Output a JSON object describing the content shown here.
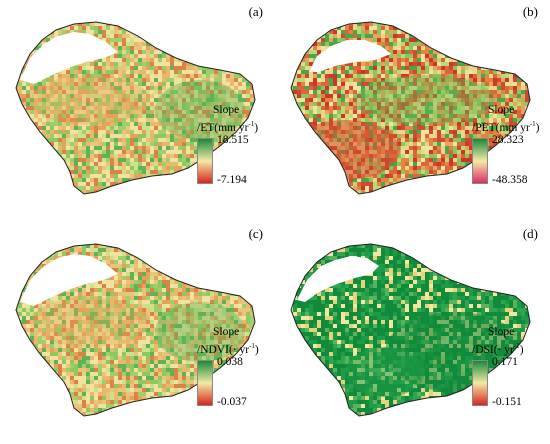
{
  "figure": {
    "panels": [
      {
        "label": "(a)",
        "legend_title_1": "Slope",
        "legend_title_2": "/ET(mm yr",
        "legend_exponent": "-1",
        "legend_close": ")",
        "max_label": "18.515",
        "min_label": "-7.194",
        "dominant": "mixed-orange",
        "colors": {
          "top": "#1a8a3a",
          "mid": "#f3e9a6",
          "bottom": "#d8261c"
        }
      },
      {
        "label": "(b)",
        "legend_title_1": "Slope",
        "legend_title_2": "/PET(mm yr",
        "legend_exponent": "-1",
        "legend_close": ")",
        "max_label": "28.323",
        "min_label": "-48.358",
        "dominant": "mixed-red",
        "colors": {
          "top": "#1a8a3a",
          "mid": "#f3e9a6",
          "bottom": "#e02a6a"
        }
      },
      {
        "label": "(c)",
        "legend_title_1": "Slope",
        "legend_title_2": "/NDVI(· yr",
        "legend_exponent": "-1",
        "legend_close": ")",
        "max_label": "0.038",
        "min_label": "-0.037",
        "dominant": "mixed-orange",
        "colors": {
          "top": "#1a8a3a",
          "mid": "#f3e9a6",
          "bottom": "#d8261c"
        }
      },
      {
        "label": "(d)",
        "legend_title_1": "Slope",
        "legend_title_2": "/DSI(· yr",
        "legend_exponent": "-1",
        "legend_close": ")",
        "max_label": "0.171",
        "min_label": "-0.151",
        "dominant": "green",
        "colors": {
          "top": "#1a8a3a",
          "mid": "#f3e9a6",
          "bottom": "#d8261c"
        }
      }
    ]
  }
}
